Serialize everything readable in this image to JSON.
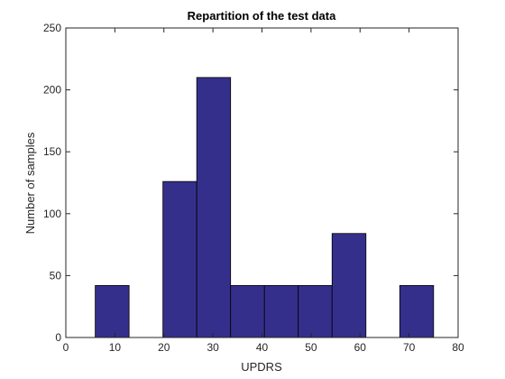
{
  "chart_data": {
    "type": "bar",
    "title": "Repartition of the test data",
    "xlabel": "UPDRS",
    "ylabel": "Number of samples",
    "xlim": [
      0,
      80
    ],
    "ylim": [
      0,
      250
    ],
    "xticks": [
      0,
      10,
      20,
      30,
      40,
      50,
      60,
      70,
      80
    ],
    "yticks": [
      0,
      50,
      100,
      150,
      200,
      250
    ],
    "grid": false,
    "bins": [
      {
        "x0": 6.0,
        "x1": 12.9,
        "value": 42
      },
      {
        "x0": 12.9,
        "x1": 19.8,
        "value": 0
      },
      {
        "x0": 19.8,
        "x1": 26.7,
        "value": 126
      },
      {
        "x0": 26.7,
        "x1": 33.6,
        "value": 210
      },
      {
        "x0": 33.6,
        "x1": 40.5,
        "value": 42
      },
      {
        "x0": 40.5,
        "x1": 47.4,
        "value": 42
      },
      {
        "x0": 47.4,
        "x1": 54.3,
        "value": 42
      },
      {
        "x0": 54.3,
        "x1": 61.2,
        "value": 84
      },
      {
        "x0": 61.2,
        "x1": 68.1,
        "value": 0
      },
      {
        "x0": 68.1,
        "x1": 75.0,
        "value": 42
      }
    ],
    "colors": {
      "bar_fill": "#352F8C",
      "bar_edge": "#000000",
      "axis": "#262626",
      "background": "#FFFFFF"
    }
  }
}
